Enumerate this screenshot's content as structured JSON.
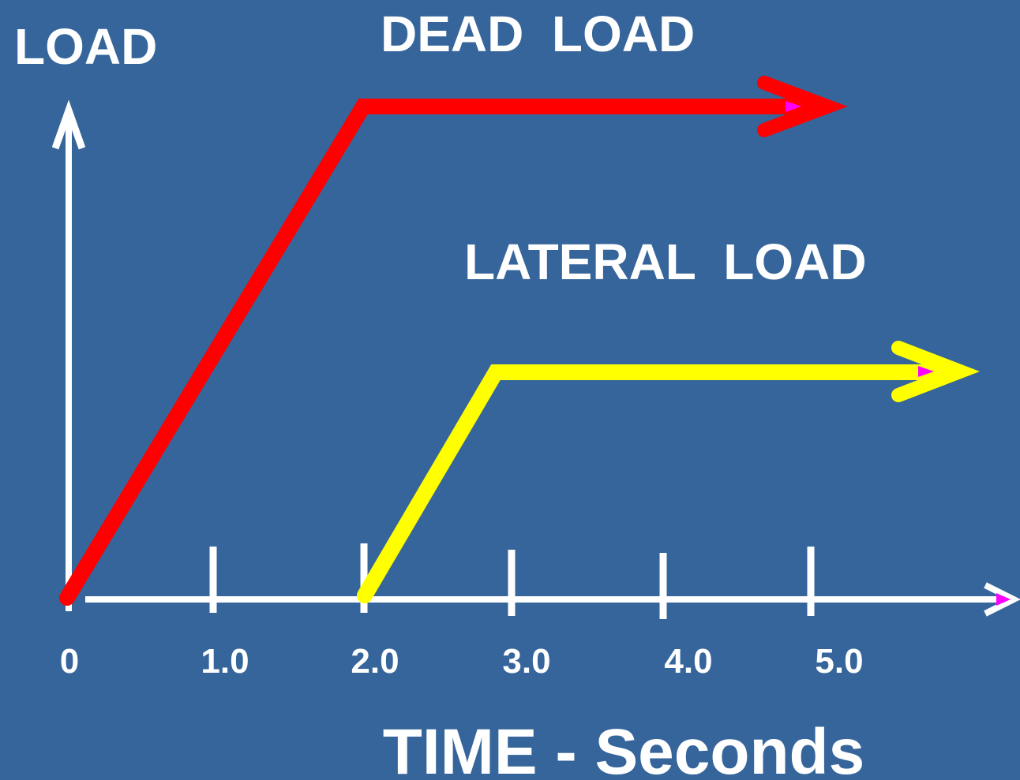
{
  "y_axis_label": "LOAD",
  "x_axis_label": "TIME - Seconds",
  "curves": [
    {
      "label": "DEAD  LOAD"
    },
    {
      "label": "LATERAL  LOAD"
    }
  ],
  "x_ticks": [
    "0",
    "1.0",
    "2.0",
    "3.0",
    "4.0",
    "5.0"
  ]
}
